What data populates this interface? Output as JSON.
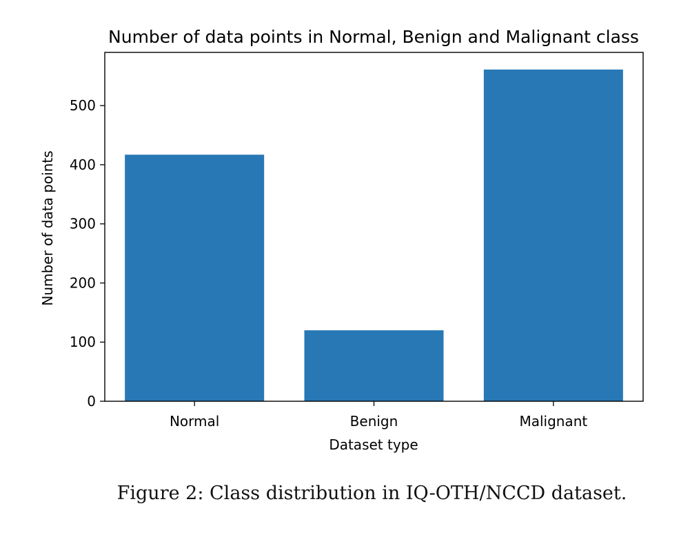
{
  "chart_data": {
    "type": "bar",
    "title": "Number of data points in Normal, Benign and Malignant class",
    "xlabel": "Dataset type",
    "ylabel": "Number of data points",
    "categories": [
      "Normal",
      "Benign",
      "Malignant"
    ],
    "values": [
      417,
      120,
      561
    ],
    "ylim": [
      0,
      590
    ],
    "yticks": [
      0,
      100,
      200,
      300,
      400,
      500
    ],
    "grid": false,
    "bar_color": "#2878b5"
  },
  "caption": "Figure 2: Class distribution in IQ-OTH/NCCD dataset."
}
